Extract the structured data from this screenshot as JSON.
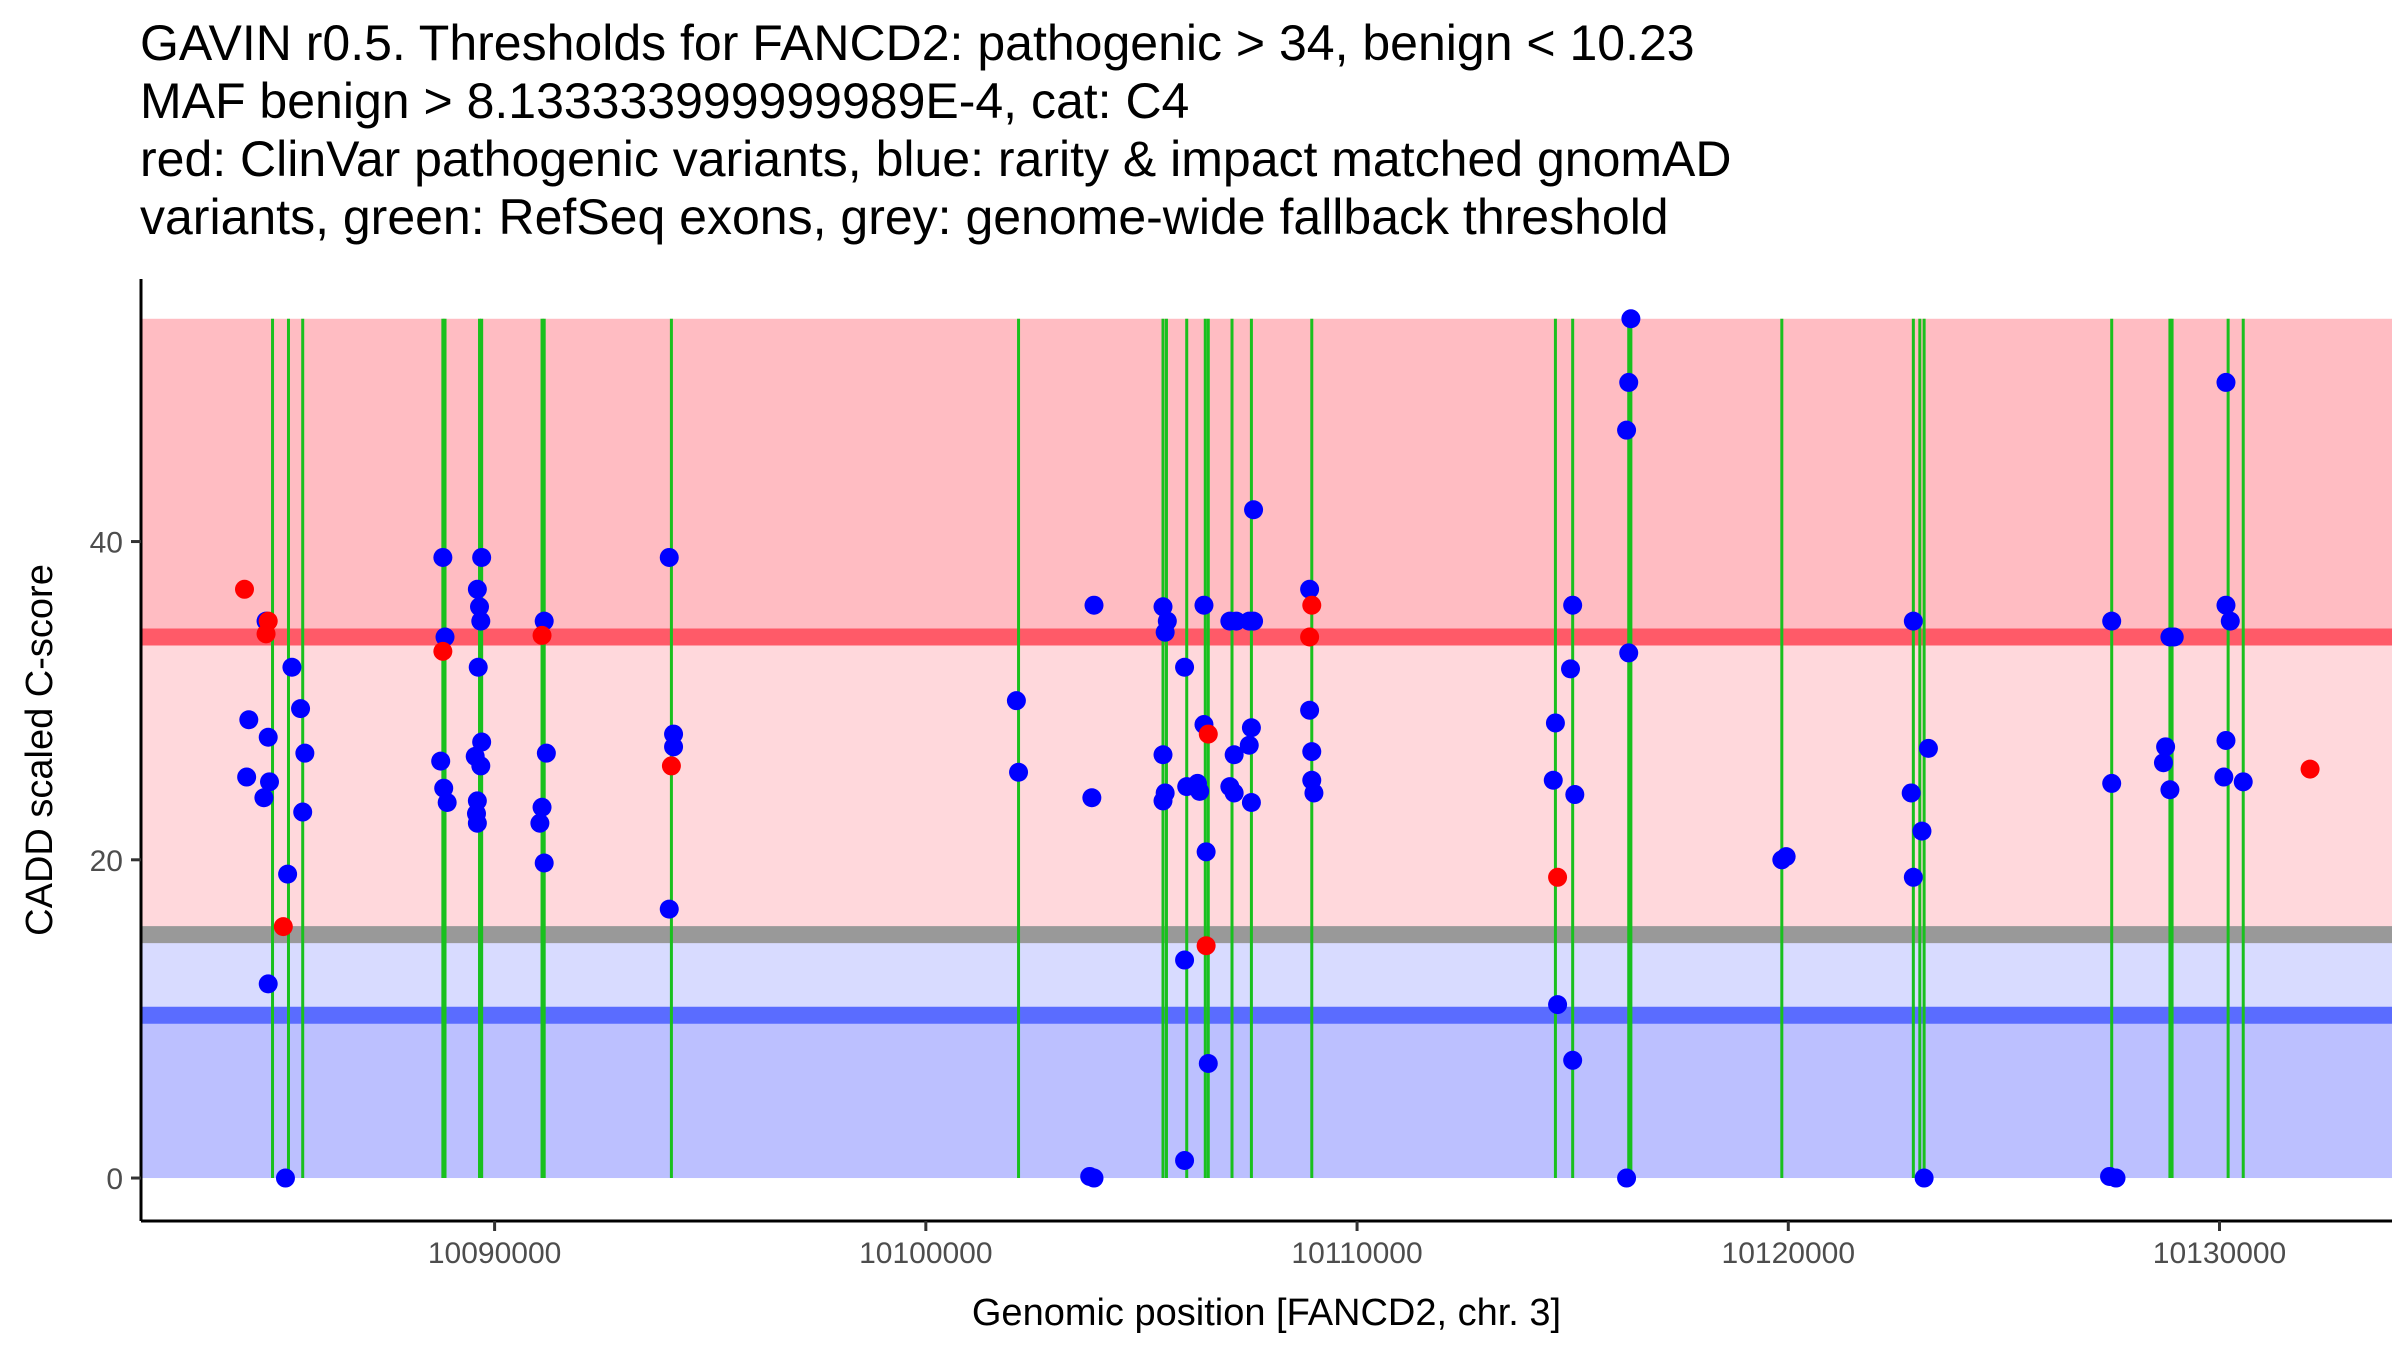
{
  "chart_data": {
    "type": "scatter",
    "title_lines": [
      "GAVIN r0.5. Thresholds for FANCD2: pathogenic > 34, benign < 10.23",
      "MAF benign > 8.133333999999989E-4, cat: C4",
      "red: ClinVar pathogenic variants, blue: rarity & impact matched gnomAD",
      "variants, green: RefSeq exons, grey: genome-wide fallback threshold"
    ],
    "xlabel": "Genomic position [FANCD2, chr. 3]",
    "ylabel": "CADD scaled C-score",
    "xlim": [
      10081800,
      10134000
    ],
    "ylim": [
      -2.7,
      56.5
    ],
    "x_ticks": [
      {
        "value": 10090000,
        "label": "10090000"
      },
      {
        "value": 10100000,
        "label": "10100000"
      },
      {
        "value": 10110000,
        "label": "10110000"
      },
      {
        "value": 10120000,
        "label": "10120000"
      },
      {
        "value": 10130000,
        "label": "10130000"
      }
    ],
    "y_ticks": [
      {
        "value": 0,
        "label": "0"
      },
      {
        "value": 20,
        "label": "20"
      },
      {
        "value": 40,
        "label": "40"
      }
    ],
    "bands": [
      {
        "name": "pathogenic-region-band",
        "y0": 34,
        "y1": 54,
        "color": "#ffbcc2"
      },
      {
        "name": "grey-to-pathogenic-band",
        "y0": 15.3,
        "y1": 34,
        "color": "#ffd8dc"
      },
      {
        "name": "benign-to-grey-band",
        "y0": 10.23,
        "y1": 15.3,
        "color": "#d8dbff"
      },
      {
        "name": "benign-region-band",
        "y0": 0,
        "y1": 10.23,
        "color": "#bcc0ff"
      }
    ],
    "threshold_lines": [
      {
        "name": "pathogenic-threshold-line",
        "value": 34,
        "color": "#ff5a68"
      },
      {
        "name": "grey-fallback-threshold-line",
        "value": 15.3,
        "color": "#999999"
      },
      {
        "name": "benign-threshold-line",
        "value": 10.23,
        "color": "#5a6cff"
      }
    ],
    "exons": [
      10084850,
      10085220,
      10085550,
      10088800,
      10088850,
      10089650,
      10089700,
      10091100,
      10091150,
      10094100,
      10102150,
      10105500,
      10105580,
      10106050,
      10106480,
      10106550,
      10107100,
      10107550,
      10108950,
      10114600,
      10115000,
      10116300,
      10116350,
      10119850,
      10122900,
      10123050,
      10123150,
      10127500,
      10128850,
      10128900,
      10130200,
      10130550
    ],
    "series": [
      {
        "name": "ClinVar pathogenic",
        "color": "#ff0000",
        "points": [
          [
            10084200,
            37
          ],
          [
            10084750,
            35
          ],
          [
            10084700,
            34.2
          ],
          [
            10085100,
            15.8
          ],
          [
            10088800,
            33.1
          ],
          [
            10091100,
            34.1
          ],
          [
            10094100,
            25.9
          ],
          [
            10106550,
            27.9
          ],
          [
            10106500,
            14.6
          ],
          [
            10108950,
            36
          ],
          [
            10108900,
            34
          ],
          [
            10114650,
            18.9
          ],
          [
            10132100,
            25.7
          ]
        ]
      },
      {
        "name": "gnomAD matched",
        "color": "#0000ff",
        "points": [
          [
            10084250,
            25.2
          ],
          [
            10084300,
            28.8
          ],
          [
            10084700,
            35
          ],
          [
            10084750,
            27.7
          ],
          [
            10084650,
            23.9
          ],
          [
            10084780,
            24.9
          ],
          [
            10084750,
            12.2
          ],
          [
            10085150,
            0
          ],
          [
            10085200,
            19.1
          ],
          [
            10085300,
            32.1
          ],
          [
            10085500,
            29.5
          ],
          [
            10085600,
            26.7
          ],
          [
            10085550,
            23
          ],
          [
            10088800,
            39
          ],
          [
            10088850,
            34
          ],
          [
            10088750,
            26.2
          ],
          [
            10088820,
            24.5
          ],
          [
            10088900,
            23.6
          ],
          [
            10089600,
            37
          ],
          [
            10089650,
            35.9
          ],
          [
            10089700,
            39
          ],
          [
            10089680,
            35
          ],
          [
            10089620,
            32.1
          ],
          [
            10089700,
            27.4
          ],
          [
            10089550,
            26.5
          ],
          [
            10089680,
            25.9
          ],
          [
            10089600,
            23.7
          ],
          [
            10089580,
            22.9
          ],
          [
            10089600,
            22.3
          ],
          [
            10091150,
            35
          ],
          [
            10091200,
            26.7
          ],
          [
            10091100,
            23.3
          ],
          [
            10091050,
            22.3
          ],
          [
            10091150,
            19.8
          ],
          [
            10094050,
            39
          ],
          [
            10094150,
            27.9
          ],
          [
            10094150,
            27.1
          ],
          [
            10094050,
            16.9
          ],
          [
            10102100,
            30
          ],
          [
            10102150,
            25.5
          ],
          [
            10103900,
            36
          ],
          [
            10103850,
            23.9
          ],
          [
            10103800,
            0.1
          ],
          [
            10103900,
            0
          ],
          [
            10105500,
            35.9
          ],
          [
            10105600,
            35
          ],
          [
            10105550,
            34.3
          ],
          [
            10105500,
            26.6
          ],
          [
            10105550,
            24.2
          ],
          [
            10105500,
            23.7
          ],
          [
            10106000,
            32.1
          ],
          [
            10106000,
            13.7
          ],
          [
            10106050,
            24.6
          ],
          [
            10106300,
            24.8
          ],
          [
            10106350,
            24.3
          ],
          [
            10106450,
            36
          ],
          [
            10106450,
            28.5
          ],
          [
            10106500,
            20.5
          ],
          [
            10106550,
            7.2
          ],
          [
            10106000,
            1.1
          ],
          [
            10107050,
            35
          ],
          [
            10107200,
            35
          ],
          [
            10107150,
            26.6
          ],
          [
            10107050,
            24.6
          ],
          [
            10107150,
            24.2
          ],
          [
            10107500,
            35
          ],
          [
            10107600,
            35
          ],
          [
            10107550,
            28.3
          ],
          [
            10107500,
            27.2
          ],
          [
            10107550,
            23.6
          ],
          [
            10107600,
            42
          ],
          [
            10108900,
            37
          ],
          [
            10108900,
            29.4
          ],
          [
            10108950,
            26.8
          ],
          [
            10108950,
            25
          ],
          [
            10109000,
            24.2
          ],
          [
            10114600,
            28.6
          ],
          [
            10114550,
            25
          ],
          [
            10114650,
            10.9
          ],
          [
            10115000,
            36
          ],
          [
            10114950,
            32
          ],
          [
            10115050,
            24.1
          ],
          [
            10115000,
            7.4
          ],
          [
            10116350,
            54
          ],
          [
            10116300,
            50
          ],
          [
            10116250,
            47
          ],
          [
            10116300,
            33
          ],
          [
            10116250,
            0
          ],
          [
            10119850,
            20
          ],
          [
            10119950,
            20.2
          ],
          [
            10122900,
            35
          ],
          [
            10122850,
            24.2
          ],
          [
            10122900,
            18.9
          ],
          [
            10123100,
            21.8
          ],
          [
            10123250,
            27
          ],
          [
            10123150,
            0
          ],
          [
            10127500,
            35
          ],
          [
            10127500,
            24.8
          ],
          [
            10127450,
            0.1
          ],
          [
            10127600,
            0
          ],
          [
            10128850,
            34
          ],
          [
            10128950,
            34
          ],
          [
            10128750,
            27.1
          ],
          [
            10128700,
            26.1
          ],
          [
            10128850,
            24.4
          ],
          [
            10130150,
            50
          ],
          [
            10130150,
            36
          ],
          [
            10130250,
            35
          ],
          [
            10130150,
            27.5
          ],
          [
            10130100,
            25.2
          ],
          [
            10130550,
            24.9
          ]
        ]
      }
    ]
  }
}
